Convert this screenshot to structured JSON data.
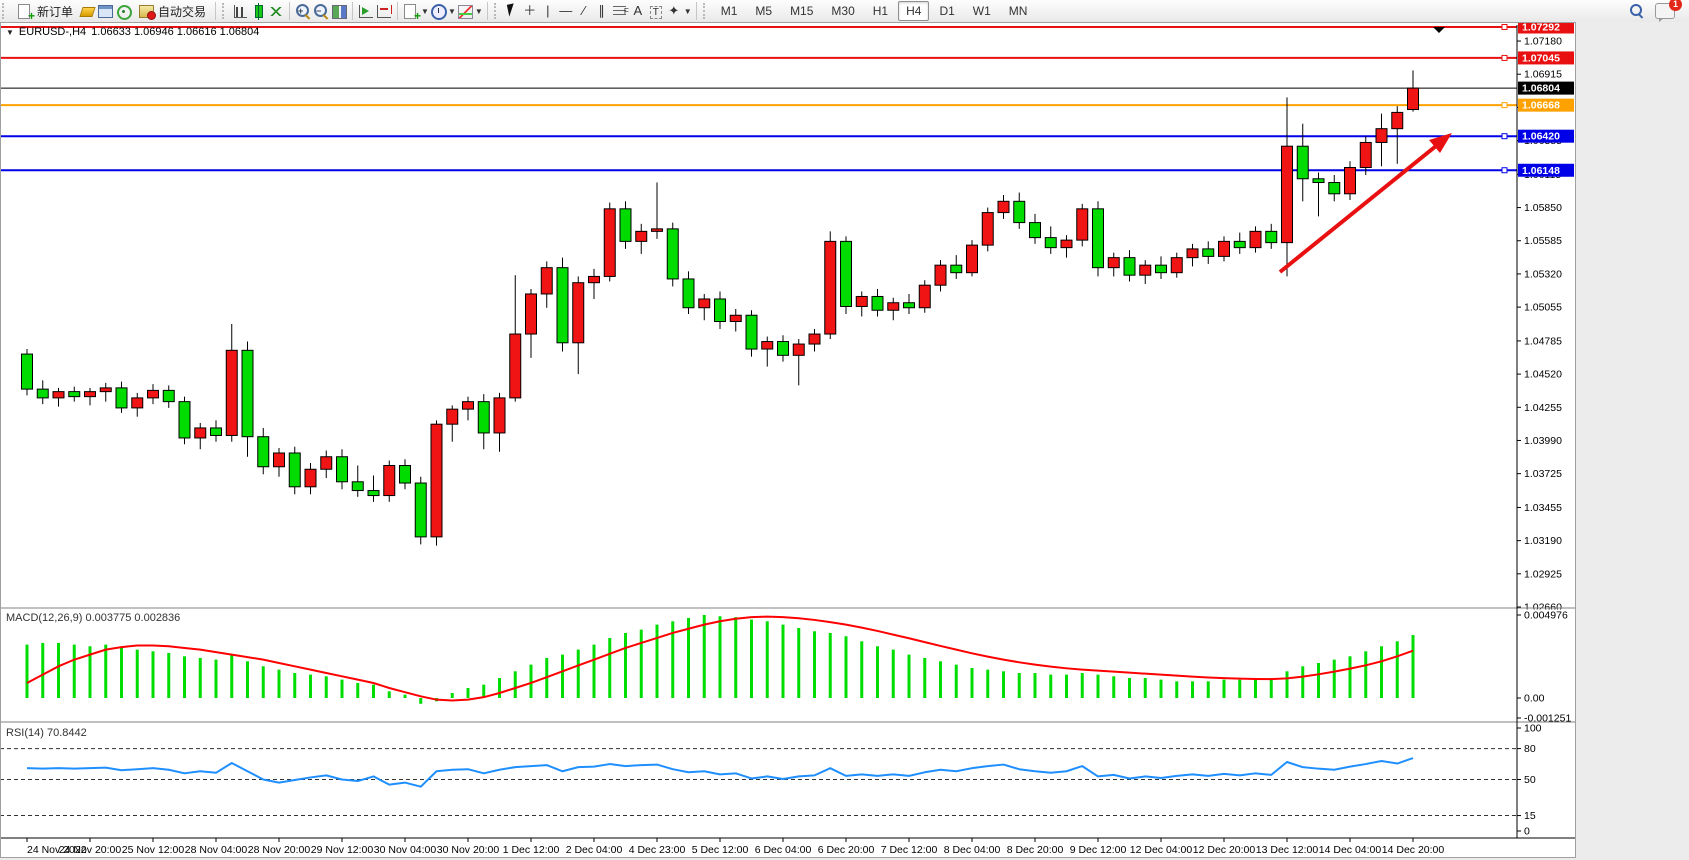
{
  "toolbar": {
    "new_order": "新订单",
    "autotrade": "自动交易",
    "timeframes": [
      "M1",
      "M5",
      "M15",
      "M30",
      "H1",
      "H4",
      "D1",
      "W1",
      "MN"
    ],
    "active_timeframe": "H4",
    "notification_badge": "1"
  },
  "window": {
    "title": "EURUSD-,H4",
    "ohlc": "1.06633 1.06946 1.06616 1.06804"
  },
  "indicators": {
    "macd_label": "MACD(12,26,9) 0.003775 0.002836",
    "rsi_label": "RSI(14) 70.8442"
  },
  "colors": {
    "up": "#f01414",
    "down": "#00dc00",
    "wick": "#000000",
    "macd_hist": "#00dd00",
    "macd_signal": "#ff0000",
    "rsi_line": "#1f8fff",
    "line_red": "#e81010",
    "line_orange": "#ffa200",
    "line_blue": "#0000e8",
    "current": "#000000",
    "arrow": "#e81010"
  },
  "chart_data": [
    {
      "type": "candlestick",
      "symbol": "EURUSD-",
      "period": "H4",
      "scale": {
        "top_price": 1.07332,
        "bottom_price": 1.02652
      },
      "price_ticks": [
        "1.07180",
        "1.06915",
        "1.06650",
        "1.06385",
        "1.06115",
        "1.05850",
        "1.05585",
        "1.05320",
        "1.05055",
        "1.04785",
        "1.04520",
        "1.04255",
        "1.03990",
        "1.03725",
        "1.03455",
        "1.03190",
        "1.02925",
        "1.02660"
      ],
      "hlines": [
        {
          "price": 1.07292,
          "label": "1.07292",
          "color": "#e81010",
          "w": 2
        },
        {
          "price": 1.07045,
          "label": "1.07045",
          "color": "#e81010",
          "w": 2
        },
        {
          "price": 1.06804,
          "label": "1.06804",
          "color": "#000000",
          "w": 1,
          "current": true
        },
        {
          "price": 1.06668,
          "label": "1.06668",
          "color": "#ffa200",
          "w": 2
        },
        {
          "price": 1.0642,
          "label": "1.06420",
          "color": "#0000e8",
          "w": 2
        },
        {
          "price": 1.06148,
          "label": "1.06148",
          "color": "#0000e8",
          "w": 2
        }
      ],
      "marker_down_triangle_x_bar": 76,
      "trend_arrow": {
        "from_bar": 55,
        "note": "red up arrow pointing to 1.0642 line"
      },
      "time_labels": [
        "24 Nov 2022",
        "24 Nov 20:00",
        "25 Nov 12:00",
        "28 Nov 04:00",
        "28 Nov 20:00",
        "29 Nov 12:00",
        "30 Nov 04:00",
        "30 Nov 20:00",
        "1 Dec 12:00",
        "2 Dec 04:00",
        "4 Dec 23:00",
        "5 Dec 12:00",
        "6 Dec 04:00",
        "6 Dec 20:00",
        "7 Dec 12:00",
        "8 Dec 04:00",
        "8 Dec 20:00",
        "9 Dec 12:00",
        "12 Dec 04:00",
        "12 Dec 20:00",
        "13 Dec 12:00",
        "14 Dec 04:00",
        "14 Dec 20:00"
      ],
      "bars_per_label": 4,
      "candles": [
        [
          1.0468,
          1.0472,
          1.0435,
          1.044
        ],
        [
          1.044,
          1.0447,
          1.0428,
          1.0433
        ],
        [
          1.0433,
          1.0441,
          1.0426,
          1.0438
        ],
        [
          1.0438,
          1.0442,
          1.043,
          1.0434
        ],
        [
          1.0434,
          1.0441,
          1.0427,
          1.0438
        ],
        [
          1.0438,
          1.0445,
          1.043,
          1.0441
        ],
        [
          1.0441,
          1.0446,
          1.0421,
          1.0425
        ],
        [
          1.0425,
          1.0437,
          1.0418,
          1.0433
        ],
        [
          1.0433,
          1.0444,
          1.0428,
          1.0439
        ],
        [
          1.0439,
          1.0443,
          1.0425,
          1.043
        ],
        [
          1.043,
          1.0434,
          1.0396,
          1.0401
        ],
        [
          1.0401,
          1.0413,
          1.0392,
          1.0409
        ],
        [
          1.0409,
          1.0415,
          1.0398,
          1.0403
        ],
        [
          1.0403,
          1.0492,
          1.0398,
          1.0471
        ],
        [
          1.0471,
          1.0478,
          1.0386,
          1.0402
        ],
        [
          1.0402,
          1.0409,
          1.0372,
          1.0378
        ],
        [
          1.0378,
          1.0393,
          1.037,
          1.0389
        ],
        [
          1.0389,
          1.0394,
          1.0356,
          1.0362
        ],
        [
          1.0362,
          1.0381,
          1.0356,
          1.0376
        ],
        [
          1.0376,
          1.0391,
          1.0369,
          1.0386
        ],
        [
          1.0386,
          1.0392,
          1.036,
          1.0366
        ],
        [
          1.0366,
          1.0379,
          1.0354,
          1.0359
        ],
        [
          1.0359,
          1.0371,
          1.035,
          1.0355
        ],
        [
          1.0355,
          1.0383,
          1.035,
          1.0379
        ],
        [
          1.0379,
          1.0384,
          1.036,
          1.0365
        ],
        [
          1.0365,
          1.037,
          1.0316,
          1.0322
        ],
        [
          1.0322,
          1.0415,
          1.0315,
          1.0412
        ],
        [
          1.0412,
          1.0427,
          1.0398,
          1.0424
        ],
        [
          1.0424,
          1.0434,
          1.0415,
          1.043
        ],
        [
          1.043,
          1.0436,
          1.0392,
          1.0405
        ],
        [
          1.0405,
          1.0437,
          1.039,
          1.0433
        ],
        [
          1.0433,
          1.0531,
          1.043,
          1.0484
        ],
        [
          1.0484,
          1.052,
          1.0465,
          1.0516
        ],
        [
          1.0516,
          1.0542,
          1.0505,
          1.0537
        ],
        [
          1.0537,
          1.0545,
          1.047,
          1.0477
        ],
        [
          1.0477,
          1.053,
          1.0452,
          1.0525
        ],
        [
          1.0525,
          1.0536,
          1.0512,
          1.053
        ],
        [
          1.053,
          1.0589,
          1.0526,
          1.0584
        ],
        [
          1.0584,
          1.059,
          1.0552,
          1.0558
        ],
        [
          1.0558,
          1.0572,
          1.0548,
          1.0566
        ],
        [
          1.0566,
          1.0605,
          1.056,
          1.0568
        ],
        [
          1.0568,
          1.0573,
          1.0522,
          1.0528
        ],
        [
          1.0528,
          1.0534,
          1.05,
          1.0505
        ],
        [
          1.0505,
          1.0516,
          1.0495,
          1.0512
        ],
        [
          1.0512,
          1.0518,
          1.0488,
          1.0494
        ],
        [
          1.0494,
          1.0504,
          1.0486,
          1.0499
        ],
        [
          1.0499,
          1.0503,
          1.0466,
          1.0472
        ],
        [
          1.0472,
          1.0482,
          1.0458,
          1.0478
        ],
        [
          1.0478,
          1.0483,
          1.0462,
          1.0467
        ],
        [
          1.0467,
          1.048,
          1.0443,
          1.0476
        ],
        [
          1.0476,
          1.0488,
          1.047,
          1.0484
        ],
        [
          1.0484,
          1.0566,
          1.048,
          1.0558
        ],
        [
          1.0558,
          1.0562,
          1.05,
          1.0506
        ],
        [
          1.0506,
          1.0518,
          1.0498,
          1.0514
        ],
        [
          1.0514,
          1.052,
          1.0498,
          1.0503
        ],
        [
          1.0503,
          1.0513,
          1.0495,
          1.0509
        ],
        [
          1.0509,
          1.0516,
          1.05,
          1.0505
        ],
        [
          1.0505,
          1.0527,
          1.0501,
          1.0523
        ],
        [
          1.0523,
          1.0543,
          1.0518,
          1.0539
        ],
        [
          1.0539,
          1.0547,
          1.0528,
          1.0533
        ],
        [
          1.0533,
          1.0559,
          1.053,
          1.0555
        ],
        [
          1.0555,
          1.0585,
          1.055,
          1.0581
        ],
        [
          1.0581,
          1.0595,
          1.0576,
          1.059
        ],
        [
          1.059,
          1.0597,
          1.0568,
          1.0573
        ],
        [
          1.0573,
          1.058,
          1.0556,
          1.0561
        ],
        [
          1.0561,
          1.057,
          1.0548,
          1.0553
        ],
        [
          1.0553,
          1.0563,
          1.0545,
          1.0559
        ],
        [
          1.0559,
          1.0588,
          1.0554,
          1.0584
        ],
        [
          1.0584,
          1.059,
          1.053,
          1.0537
        ],
        [
          1.0537,
          1.0549,
          1.053,
          1.0545
        ],
        [
          1.0545,
          1.0551,
          1.0526,
          1.0531
        ],
        [
          1.0531,
          1.0543,
          1.0524,
          1.0539
        ],
        [
          1.0539,
          1.0546,
          1.0528,
          1.0533
        ],
        [
          1.0533,
          1.0549,
          1.0529,
          1.0545
        ],
        [
          1.0545,
          1.0556,
          1.0538,
          1.0552
        ],
        [
          1.0552,
          1.0558,
          1.054,
          1.0546
        ],
        [
          1.0546,
          1.0562,
          1.0542,
          1.0558
        ],
        [
          1.0558,
          1.0565,
          1.0548,
          1.0553
        ],
        [
          1.0553,
          1.057,
          1.0549,
          1.0566
        ],
        [
          1.0566,
          1.0572,
          1.0552,
          1.0557
        ],
        [
          1.0557,
          1.0673,
          1.053,
          1.0634
        ],
        [
          1.0634,
          1.0652,
          1.059,
          1.0608
        ],
        [
          1.0608,
          1.0613,
          1.0578,
          1.0605
        ],
        [
          1.0605,
          1.0611,
          1.059,
          1.0596
        ],
        [
          1.0596,
          1.0622,
          1.0591,
          1.0617
        ],
        [
          1.0617,
          1.0642,
          1.0611,
          1.0637
        ],
        [
          1.0637,
          1.066,
          1.0618,
          1.0648
        ],
        [
          1.0648,
          1.0666,
          1.062,
          1.0661
        ],
        [
          1.06633,
          1.06946,
          1.06616,
          1.06804
        ]
      ]
    },
    {
      "type": "bar",
      "name": "MACD",
      "params": "(12,26,9)",
      "values_main": 0.003775,
      "values_signal": 0.002836,
      "axis_ticks": [
        "0.004976",
        "0.00",
        "-0.001251"
      ],
      "axis_max": 0.004976,
      "axis_min": -0.001251,
      "hist": [
        0.0032,
        0.0033,
        0.0033,
        0.0032,
        0.0031,
        0.0032,
        0.003,
        0.0029,
        0.0028,
        0.0027,
        0.0025,
        0.0024,
        0.0023,
        0.0026,
        0.0022,
        0.0019,
        0.0017,
        0.0015,
        0.0014,
        0.0013,
        0.0011,
        0.0009,
        0.0008,
        0.0004,
        0.0002,
        -0.00035,
        -0.0002,
        0.0003,
        0.0006,
        0.0008,
        0.0012,
        0.0016,
        0.002,
        0.0024,
        0.0026,
        0.0029,
        0.0032,
        0.0036,
        0.0039,
        0.0041,
        0.0044,
        0.0046,
        0.0048,
        0.004976,
        0.0049,
        0.00485,
        0.0047,
        0.0046,
        0.0044,
        0.0042,
        0.004,
        0.0039,
        0.0037,
        0.0034,
        0.0031,
        0.0029,
        0.0026,
        0.0024,
        0.0022,
        0.002,
        0.0018,
        0.0017,
        0.0016,
        0.0015,
        0.0015,
        0.0014,
        0.0014,
        0.0015,
        0.0014,
        0.0013,
        0.0012,
        0.0012,
        0.0011,
        0.001,
        0.001,
        0.001,
        0.0011,
        0.0011,
        0.0012,
        0.0012,
        0.0016,
        0.0019,
        0.0021,
        0.0023,
        0.0025,
        0.0028,
        0.0031,
        0.0034,
        0.003775
      ],
      "signal": [
        0.0009,
        0.0014,
        0.0019,
        0.0023,
        0.0026,
        0.0029,
        0.00305,
        0.00315,
        0.00315,
        0.0031,
        0.003,
        0.0029,
        0.00275,
        0.0026,
        0.00245,
        0.0023,
        0.0021,
        0.0019,
        0.0017,
        0.0015,
        0.0013,
        0.0011,
        0.0009,
        0.0006,
        0.00035,
        0.0001,
        -0.0001,
        -0.00015,
        -0.0001,
        5e-05,
        0.0003,
        0.0006,
        0.0009,
        0.00125,
        0.0016,
        0.00195,
        0.0023,
        0.00265,
        0.003,
        0.0033,
        0.0036,
        0.0039,
        0.00415,
        0.0044,
        0.0046,
        0.00475,
        0.00485,
        0.00488,
        0.00485,
        0.00478,
        0.00468,
        0.00455,
        0.0044,
        0.00422,
        0.00402,
        0.0038,
        0.00358,
        0.00335,
        0.00312,
        0.0029,
        0.00268,
        0.00248,
        0.0023,
        0.00214,
        0.002,
        0.00188,
        0.00178,
        0.0017,
        0.00164,
        0.00158,
        0.00152,
        0.00146,
        0.0014,
        0.00134,
        0.00128,
        0.00123,
        0.00119,
        0.00116,
        0.00114,
        0.00113,
        0.00118,
        0.00128,
        0.00142,
        0.00158,
        0.00176,
        0.00196,
        0.0022,
        0.0025,
        0.002836
      ]
    },
    {
      "type": "line",
      "name": "RSI",
      "params": "(14)",
      "value": 70.8442,
      "axis_ticks": [
        "100",
        "80",
        "50",
        "15",
        "0"
      ],
      "levels": [
        80,
        50,
        15
      ],
      "ylim": [
        0,
        100
      ],
      "values": [
        61,
        60.5,
        61,
        60.5,
        61,
        61.5,
        59,
        60,
        61,
        59.5,
        56,
        58,
        56.5,
        66,
        58,
        50,
        47,
        49.5,
        52,
        54,
        50,
        48.5,
        53,
        45,
        47,
        43,
        58,
        59.5,
        60,
        56,
        59.5,
        62,
        63,
        64,
        58,
        62,
        62.5,
        65,
        63,
        64,
        64.5,
        60,
        57,
        58,
        55,
        56,
        51,
        53,
        50.5,
        53,
        54,
        61,
        53.5,
        55,
        53.5,
        55,
        53.5,
        57,
        59.5,
        58,
        61,
        63,
        64.5,
        60,
        58,
        56.5,
        58,
        63,
        53,
        54.5,
        51,
        53,
        51.5,
        53.5,
        55,
        53.5,
        55.5,
        54,
        56,
        54.5,
        67,
        62,
        60.5,
        59.5,
        62.5,
        65,
        68,
        65.5,
        70.8442
      ]
    }
  ]
}
